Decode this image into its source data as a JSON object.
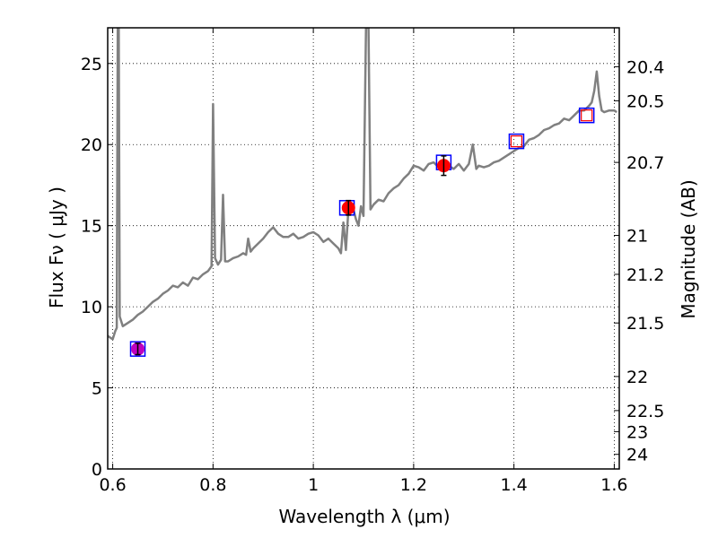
{
  "chart_data": {
    "type": "scatter",
    "xlabel": "Wavelength  λ (μm)",
    "ylabel": "Flux  Fν  ( μJy )",
    "y2label": "Magnitude (AB)",
    "xlim": [
      0.59,
      1.61
    ],
    "ylim": [
      0,
      27.2
    ],
    "grid": true,
    "x_ticks": [
      {
        "value": 0.6,
        "label": "0.6"
      },
      {
        "value": 0.8,
        "label": "0.8"
      },
      {
        "value": 1.0,
        "label": "1"
      },
      {
        "value": 1.2,
        "label": "1.2"
      },
      {
        "value": 1.4,
        "label": "1.4"
      },
      {
        "value": 1.6,
        "label": "1.6"
      }
    ],
    "y_ticks": [
      {
        "value": 0,
        "label": "0"
      },
      {
        "value": 5,
        "label": "5"
      },
      {
        "value": 10,
        "label": "10"
      },
      {
        "value": 15,
        "label": "15"
      },
      {
        "value": 20,
        "label": "20"
      },
      {
        "value": 25,
        "label": "25"
      }
    ],
    "y2_ticks": [
      {
        "flux": 24.8,
        "label": "20.4"
      },
      {
        "flux": 22.7,
        "label": "20.5"
      },
      {
        "flux": 18.9,
        "label": "20.7"
      },
      {
        "flux": 14.4,
        "label": "21"
      },
      {
        "flux": 12.0,
        "label": "21.2"
      },
      {
        "flux": 9.0,
        "label": "21.5"
      },
      {
        "flux": 5.7,
        "label": "22"
      },
      {
        "flux": 3.6,
        "label": "22.5"
      },
      {
        "flux": 2.3,
        "label": "23"
      },
      {
        "flux": 0.9,
        "label": "24"
      }
    ],
    "series": [
      {
        "kind": "spectrum",
        "color": "#808080",
        "points": [
          [
            0.59,
            8.2
          ],
          [
            0.6,
            8.0
          ],
          [
            0.605,
            8.5
          ],
          [
            0.608,
            8.7
          ],
          [
            0.61,
            27.2
          ],
          [
            0.612,
            27.2
          ],
          [
            0.614,
            9.4
          ],
          [
            0.62,
            8.8
          ],
          [
            0.63,
            9.0
          ],
          [
            0.64,
            9.2
          ],
          [
            0.65,
            9.5
          ],
          [
            0.66,
            9.7
          ],
          [
            0.67,
            10.0
          ],
          [
            0.68,
            10.3
          ],
          [
            0.69,
            10.5
          ],
          [
            0.7,
            10.8
          ],
          [
            0.71,
            11.0
          ],
          [
            0.72,
            11.3
          ],
          [
            0.73,
            11.2
          ],
          [
            0.74,
            11.5
          ],
          [
            0.75,
            11.3
          ],
          [
            0.76,
            11.8
          ],
          [
            0.77,
            11.7
          ],
          [
            0.78,
            12.0
          ],
          [
            0.79,
            12.2
          ],
          [
            0.797,
            12.5
          ],
          [
            0.8,
            22.5
          ],
          [
            0.804,
            13.0
          ],
          [
            0.81,
            12.6
          ],
          [
            0.816,
            12.9
          ],
          [
            0.82,
            16.9
          ],
          [
            0.824,
            12.8
          ],
          [
            0.83,
            12.8
          ],
          [
            0.84,
            13.0
          ],
          [
            0.85,
            13.1
          ],
          [
            0.86,
            13.3
          ],
          [
            0.866,
            13.2
          ],
          [
            0.87,
            14.2
          ],
          [
            0.875,
            13.4
          ],
          [
            0.88,
            13.6
          ],
          [
            0.89,
            13.9
          ],
          [
            0.9,
            14.2
          ],
          [
            0.91,
            14.6
          ],
          [
            0.92,
            14.9
          ],
          [
            0.93,
            14.5
          ],
          [
            0.94,
            14.3
          ],
          [
            0.95,
            14.3
          ],
          [
            0.96,
            14.5
          ],
          [
            0.97,
            14.2
          ],
          [
            0.98,
            14.3
          ],
          [
            0.99,
            14.5
          ],
          [
            1.0,
            14.6
          ],
          [
            1.01,
            14.4
          ],
          [
            1.02,
            14.0
          ],
          [
            1.03,
            14.2
          ],
          [
            1.04,
            13.9
          ],
          [
            1.05,
            13.6
          ],
          [
            1.055,
            13.3
          ],
          [
            1.06,
            15.2
          ],
          [
            1.065,
            13.5
          ],
          [
            1.07,
            16.0
          ],
          [
            1.08,
            16.0
          ],
          [
            1.085,
            15.4
          ],
          [
            1.09,
            15.0
          ],
          [
            1.095,
            16.2
          ],
          [
            1.1,
            15.6
          ],
          [
            1.105,
            27.2
          ],
          [
            1.11,
            27.2
          ],
          [
            1.114,
            16.0
          ],
          [
            1.12,
            16.3
          ],
          [
            1.13,
            16.6
          ],
          [
            1.14,
            16.5
          ],
          [
            1.15,
            17.0
          ],
          [
            1.16,
            17.3
          ],
          [
            1.17,
            17.5
          ],
          [
            1.18,
            17.9
          ],
          [
            1.19,
            18.2
          ],
          [
            1.2,
            18.7
          ],
          [
            1.21,
            18.6
          ],
          [
            1.22,
            18.4
          ],
          [
            1.23,
            18.8
          ],
          [
            1.24,
            18.9
          ],
          [
            1.25,
            18.6
          ],
          [
            1.26,
            18.9
          ],
          [
            1.27,
            18.7
          ],
          [
            1.28,
            18.5
          ],
          [
            1.29,
            18.8
          ],
          [
            1.3,
            18.4
          ],
          [
            1.31,
            18.8
          ],
          [
            1.318,
            20.0
          ],
          [
            1.325,
            18.5
          ],
          [
            1.33,
            18.7
          ],
          [
            1.34,
            18.6
          ],
          [
            1.35,
            18.7
          ],
          [
            1.36,
            18.9
          ],
          [
            1.37,
            19.0
          ],
          [
            1.38,
            19.2
          ],
          [
            1.39,
            19.4
          ],
          [
            1.4,
            19.6
          ],
          [
            1.41,
            19.8
          ],
          [
            1.42,
            19.9
          ],
          [
            1.43,
            20.3
          ],
          [
            1.44,
            20.4
          ],
          [
            1.45,
            20.6
          ],
          [
            1.46,
            20.9
          ],
          [
            1.47,
            21.0
          ],
          [
            1.48,
            21.2
          ],
          [
            1.49,
            21.3
          ],
          [
            1.5,
            21.6
          ],
          [
            1.51,
            21.5
          ],
          [
            1.52,
            21.8
          ],
          [
            1.53,
            22.1
          ],
          [
            1.54,
            22.1
          ],
          [
            1.55,
            22.4
          ],
          [
            1.555,
            22.6
          ],
          [
            1.56,
            23.3
          ],
          [
            1.565,
            24.5
          ],
          [
            1.57,
            23.0
          ],
          [
            1.575,
            22.1
          ],
          [
            1.58,
            22.0
          ],
          [
            1.59,
            22.1
          ],
          [
            1.6,
            22.1
          ],
          [
            1.605,
            22.0
          ]
        ]
      },
      {
        "kind": "observed",
        "color": "#ff0000",
        "points": [
          {
            "x": 0.65,
            "y": 7.4,
            "err": 0.35,
            "color": "#bf00bf"
          },
          {
            "x": 1.07,
            "y": 16.1,
            "err": 0.45,
            "color": "#ff0000"
          },
          {
            "x": 1.26,
            "y": 18.7,
            "err": 0.6,
            "color": "#ff0000"
          }
        ]
      },
      {
        "kind": "model",
        "color": "#0000ff",
        "points": [
          {
            "x": 0.65,
            "y": 7.4
          },
          {
            "x": 1.067,
            "y": 16.1
          },
          {
            "x": 1.26,
            "y": 18.9
          },
          {
            "x": 1.405,
            "y": 20.2
          },
          {
            "x": 1.545,
            "y": 21.8
          }
        ]
      },
      {
        "kind": "upper",
        "color": "#ff0000",
        "points": [
          {
            "x": 1.405,
            "y": 20.2
          },
          {
            "x": 1.545,
            "y": 21.8
          }
        ]
      }
    ]
  }
}
